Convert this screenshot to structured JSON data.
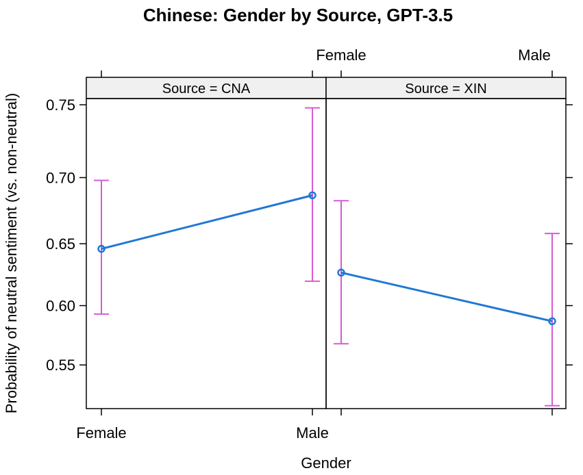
{
  "chart_data": {
    "type": "line",
    "title": "Chinese: Gender by Source, GPT-3.5",
    "xlabel": "Gender",
    "ylabel": "Probability of neutral sentiment (vs. non-neutral)",
    "categories": [
      "Female",
      "Male"
    ],
    "ylim": [
      0.5125,
      0.754
    ],
    "y_scale": "logit",
    "yticks": [
      "0.55",
      "0.60",
      "0.65",
      "0.70",
      "0.75"
    ],
    "grid": false,
    "colors": {
      "line": "#1f77d6",
      "error_bar": "#d65bd6",
      "strip_bg": "#f0f0f0"
    },
    "panels": [
      {
        "strip": "Source = CNA",
        "series": [
          {
            "x": "Female",
            "y": 0.646,
            "lower": 0.593,
            "upper": 0.698
          },
          {
            "x": "Male",
            "y": 0.687,
            "lower": 0.62,
            "upper": 0.748
          }
        ]
      },
      {
        "strip": "Source = XIN",
        "series": [
          {
            "x": "Female",
            "y": 0.627,
            "lower": 0.568,
            "upper": 0.683
          },
          {
            "x": "Male",
            "y": 0.587,
            "lower": 0.515,
            "upper": 0.658
          }
        ]
      }
    ]
  }
}
